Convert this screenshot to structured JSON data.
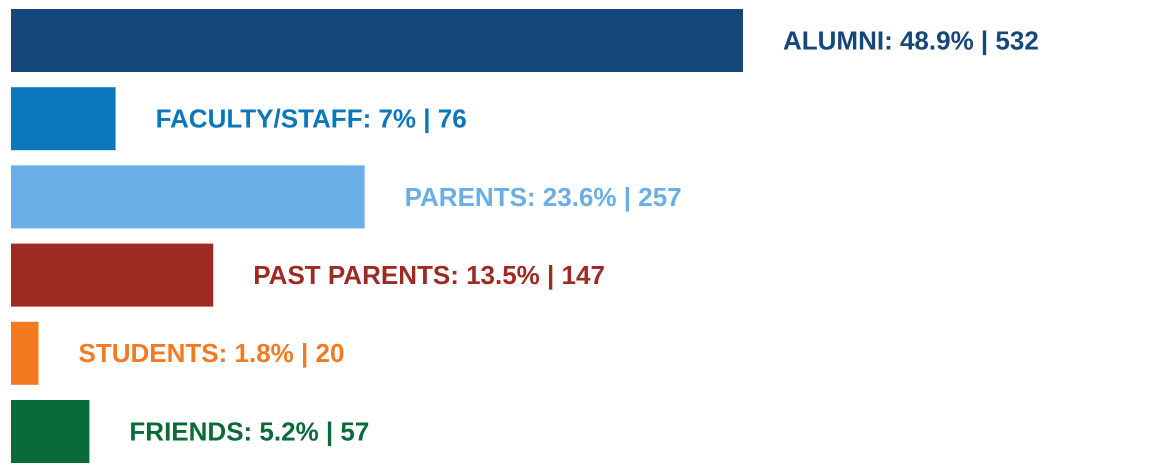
{
  "chart_data": {
    "type": "bar",
    "orientation": "horizontal",
    "values": [
      532,
      76,
      257,
      147,
      20,
      57
    ],
    "percentages": [
      48.9,
      7,
      23.6,
      13.5,
      1.8,
      5.2
    ],
    "value_labels": [
      "ALUMNI: 48.9% | 532",
      "FACULTY/STAFF: 7% | 76",
      "PARENTS: 23.6% | 257",
      "PAST PARENTS: 13.5% | 147",
      "STUDENTS: 1.8% | 20",
      "FRIENDS: 5.2% | 57"
    ],
    "colors": [
      "#15477a",
      "#0a77bd",
      "#6aaee6",
      "#9e2a24",
      "#f47a22",
      "#0b6a3a"
    ],
    "xlim": [
      0,
      532
    ]
  }
}
